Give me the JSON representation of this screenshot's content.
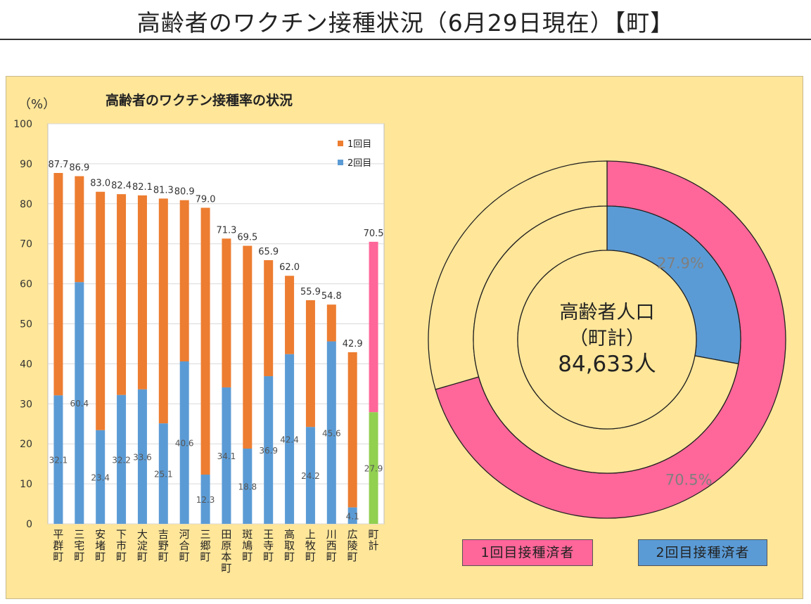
{
  "page_title": "高齢者のワクチン接種状況（6月29日現在）【町】",
  "percent_unit": "（%）",
  "chart_data": [
    {
      "type": "bar",
      "title": "高齢者のワクチン接種率の状況",
      "ylabel": "（%）",
      "ylim": [
        0,
        100
      ],
      "yticks": [
        0,
        10,
        20,
        30,
        40,
        50,
        60,
        70,
        80,
        90,
        100
      ],
      "categories": [
        "平群町",
        "三宅町",
        "安堵町",
        "下市町",
        "大淀町",
        "吉野町",
        "河合町",
        "三郷町",
        "田原本町",
        "斑鳩町",
        "王寺町",
        "高取町",
        "上牧町",
        "川西町",
        "広陵町",
        "町計"
      ],
      "series": [
        {
          "name": "1回目",
          "color": "#ED7D31",
          "values": [
            87.7,
            86.9,
            83.0,
            82.4,
            82.1,
            81.3,
            80.9,
            79.0,
            71.3,
            69.5,
            65.9,
            62.0,
            55.9,
            54.8,
            42.9,
            70.5
          ],
          "labels": [
            "87.7",
            "86.9",
            "83.0",
            "82.4",
            "82.1",
            "81.3",
            "80.9",
            "79.0",
            "71.3",
            "69.5",
            "65.9",
            "62.0",
            "55.9",
            "54.8",
            "42.9",
            "70.5"
          ]
        },
        {
          "name": "2回目",
          "color": "#5B9BD5",
          "values": [
            32.1,
            60.4,
            23.4,
            32.2,
            33.6,
            25.1,
            40.6,
            12.3,
            34.1,
            18.8,
            36.9,
            42.4,
            24.2,
            45.6,
            4.1,
            27.9
          ],
          "labels": [
            "32.1",
            "60.4",
            "23.4",
            "32.2",
            "33.6",
            "25.1",
            "40.6",
            "12.3",
            "34.1",
            "18.8",
            "36.9",
            "42.4",
            "24.2",
            "45.6",
            "4.1",
            "27.9"
          ]
        }
      ],
      "total_colors": {
        "first": "#FF6699",
        "second": "#92D050"
      },
      "grid": true,
      "legend": "top-right"
    },
    {
      "type": "pie",
      "subtype": "doughnut",
      "center_label": {
        "line1": "高齢者人口",
        "line2": "（町計）",
        "line3": "84,633人"
      },
      "rings": [
        {
          "name": "1回目接種済者",
          "value": 70.5,
          "label": "70.5%",
          "color": "#FF6699",
          "rest_color": "#FFE699"
        },
        {
          "name": "2回目接種済者",
          "value": 27.9,
          "label": "27.9%",
          "color": "#5B9BD5",
          "rest_color": "#FFE699"
        }
      ],
      "legend": "bottom"
    }
  ]
}
